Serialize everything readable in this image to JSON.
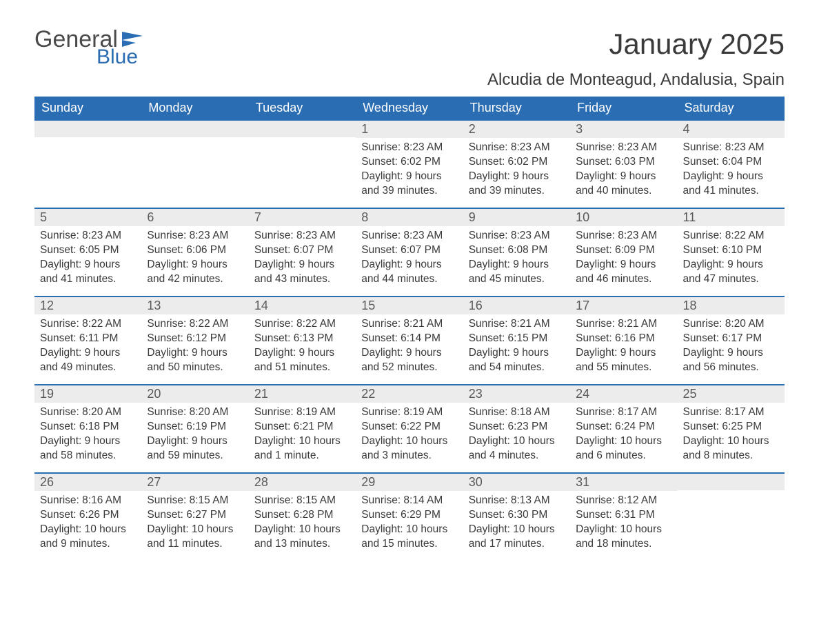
{
  "branding": {
    "word1": "General",
    "word2": "Blue",
    "flag_color": "#2a6db3",
    "text_gray": "#4a4a4a"
  },
  "header": {
    "title": "January 2025",
    "location": "Alcudia de Monteagud, Andalusia, Spain"
  },
  "styling": {
    "header_bg": "#2a6db3",
    "header_text": "#ffffff",
    "row_border": "#2a6db3",
    "daynum_bg": "#ececec",
    "body_text": "#3a3a3a",
    "page_bg": "#ffffff",
    "title_fontsize": 42,
    "location_fontsize": 24,
    "dayheader_fontsize": 18,
    "daynum_fontsize": 18,
    "content_fontsize": 15.5
  },
  "calendar": {
    "day_headers": [
      "Sunday",
      "Monday",
      "Tuesday",
      "Wednesday",
      "Thursday",
      "Friday",
      "Saturday"
    ],
    "weeks": [
      [
        null,
        null,
        null,
        {
          "num": "1",
          "sunrise": "Sunrise: 8:23 AM",
          "sunset": "Sunset: 6:02 PM",
          "daylight": "Daylight: 9 hours and 39 minutes."
        },
        {
          "num": "2",
          "sunrise": "Sunrise: 8:23 AM",
          "sunset": "Sunset: 6:02 PM",
          "daylight": "Daylight: 9 hours and 39 minutes."
        },
        {
          "num": "3",
          "sunrise": "Sunrise: 8:23 AM",
          "sunset": "Sunset: 6:03 PM",
          "daylight": "Daylight: 9 hours and 40 minutes."
        },
        {
          "num": "4",
          "sunrise": "Sunrise: 8:23 AM",
          "sunset": "Sunset: 6:04 PM",
          "daylight": "Daylight: 9 hours and 41 minutes."
        }
      ],
      [
        {
          "num": "5",
          "sunrise": "Sunrise: 8:23 AM",
          "sunset": "Sunset: 6:05 PM",
          "daylight": "Daylight: 9 hours and 41 minutes."
        },
        {
          "num": "6",
          "sunrise": "Sunrise: 8:23 AM",
          "sunset": "Sunset: 6:06 PM",
          "daylight": "Daylight: 9 hours and 42 minutes."
        },
        {
          "num": "7",
          "sunrise": "Sunrise: 8:23 AM",
          "sunset": "Sunset: 6:07 PM",
          "daylight": "Daylight: 9 hours and 43 minutes."
        },
        {
          "num": "8",
          "sunrise": "Sunrise: 8:23 AM",
          "sunset": "Sunset: 6:07 PM",
          "daylight": "Daylight: 9 hours and 44 minutes."
        },
        {
          "num": "9",
          "sunrise": "Sunrise: 8:23 AM",
          "sunset": "Sunset: 6:08 PM",
          "daylight": "Daylight: 9 hours and 45 minutes."
        },
        {
          "num": "10",
          "sunrise": "Sunrise: 8:23 AM",
          "sunset": "Sunset: 6:09 PM",
          "daylight": "Daylight: 9 hours and 46 minutes."
        },
        {
          "num": "11",
          "sunrise": "Sunrise: 8:22 AM",
          "sunset": "Sunset: 6:10 PM",
          "daylight": "Daylight: 9 hours and 47 minutes."
        }
      ],
      [
        {
          "num": "12",
          "sunrise": "Sunrise: 8:22 AM",
          "sunset": "Sunset: 6:11 PM",
          "daylight": "Daylight: 9 hours and 49 minutes."
        },
        {
          "num": "13",
          "sunrise": "Sunrise: 8:22 AM",
          "sunset": "Sunset: 6:12 PM",
          "daylight": "Daylight: 9 hours and 50 minutes."
        },
        {
          "num": "14",
          "sunrise": "Sunrise: 8:22 AM",
          "sunset": "Sunset: 6:13 PM",
          "daylight": "Daylight: 9 hours and 51 minutes."
        },
        {
          "num": "15",
          "sunrise": "Sunrise: 8:21 AM",
          "sunset": "Sunset: 6:14 PM",
          "daylight": "Daylight: 9 hours and 52 minutes."
        },
        {
          "num": "16",
          "sunrise": "Sunrise: 8:21 AM",
          "sunset": "Sunset: 6:15 PM",
          "daylight": "Daylight: 9 hours and 54 minutes."
        },
        {
          "num": "17",
          "sunrise": "Sunrise: 8:21 AM",
          "sunset": "Sunset: 6:16 PM",
          "daylight": "Daylight: 9 hours and 55 minutes."
        },
        {
          "num": "18",
          "sunrise": "Sunrise: 8:20 AM",
          "sunset": "Sunset: 6:17 PM",
          "daylight": "Daylight: 9 hours and 56 minutes."
        }
      ],
      [
        {
          "num": "19",
          "sunrise": "Sunrise: 8:20 AM",
          "sunset": "Sunset: 6:18 PM",
          "daylight": "Daylight: 9 hours and 58 minutes."
        },
        {
          "num": "20",
          "sunrise": "Sunrise: 8:20 AM",
          "sunset": "Sunset: 6:19 PM",
          "daylight": "Daylight: 9 hours and 59 minutes."
        },
        {
          "num": "21",
          "sunrise": "Sunrise: 8:19 AM",
          "sunset": "Sunset: 6:21 PM",
          "daylight": "Daylight: 10 hours and 1 minute."
        },
        {
          "num": "22",
          "sunrise": "Sunrise: 8:19 AM",
          "sunset": "Sunset: 6:22 PM",
          "daylight": "Daylight: 10 hours and 3 minutes."
        },
        {
          "num": "23",
          "sunrise": "Sunrise: 8:18 AM",
          "sunset": "Sunset: 6:23 PM",
          "daylight": "Daylight: 10 hours and 4 minutes."
        },
        {
          "num": "24",
          "sunrise": "Sunrise: 8:17 AM",
          "sunset": "Sunset: 6:24 PM",
          "daylight": "Daylight: 10 hours and 6 minutes."
        },
        {
          "num": "25",
          "sunrise": "Sunrise: 8:17 AM",
          "sunset": "Sunset: 6:25 PM",
          "daylight": "Daylight: 10 hours and 8 minutes."
        }
      ],
      [
        {
          "num": "26",
          "sunrise": "Sunrise: 8:16 AM",
          "sunset": "Sunset: 6:26 PM",
          "daylight": "Daylight: 10 hours and 9 minutes."
        },
        {
          "num": "27",
          "sunrise": "Sunrise: 8:15 AM",
          "sunset": "Sunset: 6:27 PM",
          "daylight": "Daylight: 10 hours and 11 minutes."
        },
        {
          "num": "28",
          "sunrise": "Sunrise: 8:15 AM",
          "sunset": "Sunset: 6:28 PM",
          "daylight": "Daylight: 10 hours and 13 minutes."
        },
        {
          "num": "29",
          "sunrise": "Sunrise: 8:14 AM",
          "sunset": "Sunset: 6:29 PM",
          "daylight": "Daylight: 10 hours and 15 minutes."
        },
        {
          "num": "30",
          "sunrise": "Sunrise: 8:13 AM",
          "sunset": "Sunset: 6:30 PM",
          "daylight": "Daylight: 10 hours and 17 minutes."
        },
        {
          "num": "31",
          "sunrise": "Sunrise: 8:12 AM",
          "sunset": "Sunset: 6:31 PM",
          "daylight": "Daylight: 10 hours and 18 minutes."
        },
        null
      ]
    ]
  }
}
